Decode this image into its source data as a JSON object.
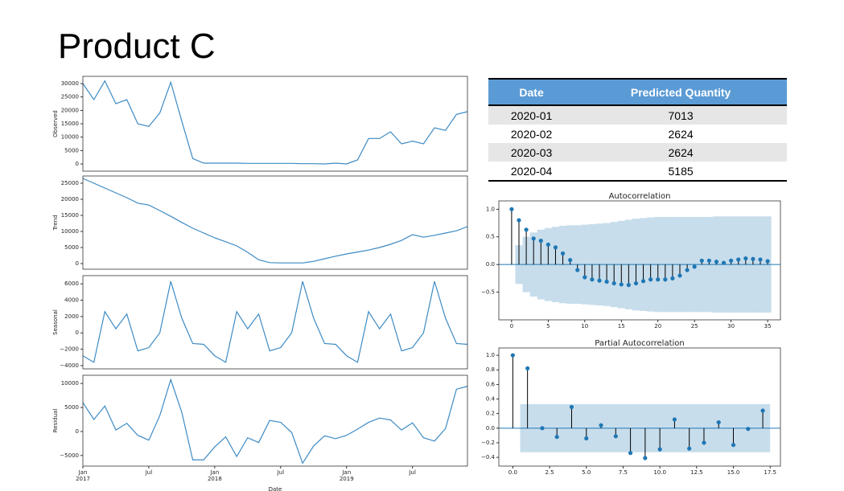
{
  "title": "Product C",
  "table": {
    "columns": [
      "Date",
      "Predicted Quantity"
    ],
    "rows": [
      [
        "2020-01",
        "7013"
      ],
      [
        "2020-02",
        "2624"
      ],
      [
        "2020-03",
        "2624"
      ],
      [
        "2020-04",
        "5185"
      ]
    ]
  },
  "chart_data": [
    {
      "type": "line",
      "ylabel": "Observed",
      "color": "#3d8bc4",
      "x": [
        "2017-01",
        "2017-02",
        "2017-03",
        "2017-04",
        "2017-05",
        "2017-06",
        "2017-07",
        "2017-08",
        "2017-09",
        "2017-10",
        "2017-11",
        "2017-12",
        "2018-01",
        "2018-02",
        "2018-03",
        "2018-04",
        "2018-05",
        "2018-06",
        "2018-07",
        "2018-08",
        "2018-09",
        "2018-10",
        "2018-11",
        "2018-12",
        "2019-01",
        "2019-02",
        "2019-03",
        "2019-04",
        "2019-05",
        "2019-06",
        "2019-07",
        "2019-08",
        "2019-09",
        "2019-10",
        "2019-11",
        "2019-12"
      ],
      "values": [
        30000,
        24000,
        31000,
        22500,
        24000,
        15000,
        14000,
        19000,
        30500,
        16000,
        2000,
        300,
        300,
        300,
        300,
        200,
        200,
        200,
        200,
        200,
        100,
        100,
        0,
        300,
        0,
        1500,
        9500,
        9500,
        12000,
        7500,
        8500,
        7500,
        13500,
        12500,
        18500,
        19500
      ],
      "ylim": [
        -2700,
        32700
      ],
      "yticks": [
        0,
        5000,
        10000,
        15000,
        20000,
        25000,
        30000
      ]
    },
    {
      "type": "line",
      "ylabel": "Trend",
      "color": "#3d8bc4",
      "x": [
        "2017-01",
        "2017-02",
        "2017-03",
        "2017-04",
        "2017-05",
        "2017-06",
        "2017-07",
        "2017-08",
        "2017-09",
        "2017-10",
        "2017-11",
        "2017-12",
        "2018-01",
        "2018-02",
        "2018-03",
        "2018-04",
        "2018-05",
        "2018-06",
        "2018-07",
        "2018-08",
        "2018-09",
        "2018-10",
        "2018-11",
        "2018-12",
        "2019-01",
        "2019-02",
        "2019-03",
        "2019-04",
        "2019-05",
        "2019-06",
        "2019-07",
        "2019-08",
        "2019-09",
        "2019-10",
        "2019-11",
        "2019-12"
      ],
      "values": [
        26500,
        25000,
        23500,
        22000,
        20500,
        18800,
        18200,
        16500,
        14700,
        12800,
        11000,
        9500,
        8000,
        6800,
        5500,
        3500,
        1200,
        300,
        200,
        200,
        200,
        700,
        1500,
        2300,
        3000,
        3600,
        4200,
        5000,
        6000,
        7200,
        9000,
        8200,
        8800,
        9500,
        10200,
        11500
      ],
      "ylim": [
        -1750,
        27250
      ],
      "yticks": [
        0,
        5000,
        10000,
        15000,
        20000,
        25000
      ]
    },
    {
      "type": "line",
      "ylabel": "Seasonal",
      "color": "#3d8bc4",
      "x": [
        "2017-01",
        "2017-02",
        "2017-03",
        "2017-04",
        "2017-05",
        "2017-06",
        "2017-07",
        "2017-08",
        "2017-09",
        "2017-10",
        "2017-11",
        "2017-12",
        "2018-01",
        "2018-02",
        "2018-03",
        "2018-04",
        "2018-05",
        "2018-06",
        "2018-07",
        "2018-08",
        "2018-09",
        "2018-10",
        "2018-11",
        "2018-12",
        "2019-01",
        "2019-02",
        "2019-03",
        "2019-04",
        "2019-05",
        "2019-06",
        "2019-07",
        "2019-08",
        "2019-09",
        "2019-10",
        "2019-11",
        "2019-12"
      ],
      "values": [
        -2800,
        -3600,
        2600,
        500,
        2300,
        -2200,
        -1800,
        0,
        6300,
        1800,
        -1300,
        -1400,
        -2800,
        -3600,
        2600,
        500,
        2300,
        -2200,
        -1800,
        0,
        6300,
        1800,
        -1300,
        -1400,
        -2800,
        -3600,
        2600,
        500,
        2300,
        -2200,
        -1800,
        0,
        6300,
        1800,
        -1300,
        -1400
      ],
      "ylim": [
        -4400,
        7000
      ],
      "yticks": [
        {
          "value": -4000,
          "label": "−4000"
        },
        {
          "value": -2000,
          "label": "−2000"
        },
        0,
        2000,
        4000,
        6000
      ]
    },
    {
      "type": "line",
      "ylabel": "Residual",
      "xlabel": "Date",
      "color": "#3d8bc4",
      "x": [
        "2017-01",
        "2017-02",
        "2017-03",
        "2017-04",
        "2017-05",
        "2017-06",
        "2017-07",
        "2017-08",
        "2017-09",
        "2017-10",
        "2017-11",
        "2017-12",
        "2018-01",
        "2018-02",
        "2018-03",
        "2018-04",
        "2018-05",
        "2018-06",
        "2018-07",
        "2018-08",
        "2018-09",
        "2018-10",
        "2018-11",
        "2018-12",
        "2019-01",
        "2019-02",
        "2019-03",
        "2019-04",
        "2019-05",
        "2019-06",
        "2019-07",
        "2019-08",
        "2019-09",
        "2019-10",
        "2019-11",
        "2019-12"
      ],
      "values": [
        6000,
        2500,
        5300,
        300,
        1700,
        -800,
        -1800,
        3300,
        10800,
        4000,
        -5900,
        -5900,
        -3200,
        -1100,
        -5200,
        -1300,
        -2300,
        2300,
        1900,
        -200,
        -6600,
        -3000,
        -900,
        -1500,
        -800,
        500,
        1900,
        2800,
        2400,
        300,
        1800,
        -1300,
        -2000,
        600,
        8800,
        9400
      ],
      "ylim": [
        -7200,
        11700
      ],
      "yticks": [
        {
          "value": -5000,
          "label": "−5000"
        },
        0,
        5000,
        10000
      ],
      "xticks": [
        {
          "value": "2017-01",
          "label": "Jan\n2017"
        },
        {
          "value": "2017-07",
          "label": "Jul"
        },
        {
          "value": "2018-01",
          "label": "Jan\n2018"
        },
        {
          "value": "2018-07",
          "label": "Jul"
        },
        {
          "value": "2019-01",
          "label": "Jan\n2019"
        },
        {
          "value": "2019-07",
          "label": "Jul"
        }
      ]
    },
    {
      "type": "stem",
      "title": "Autocorrelation",
      "color": "#1f77b4",
      "x": [
        0,
        1,
        2,
        3,
        4,
        5,
        6,
        7,
        8,
        9,
        10,
        11,
        12,
        13,
        14,
        15,
        16,
        17,
        18,
        19,
        20,
        21,
        22,
        23,
        24,
        25,
        26,
        27,
        28,
        29,
        30,
        31,
        32,
        33,
        34,
        35
      ],
      "values": [
        1.0,
        0.8,
        0.63,
        0.47,
        0.43,
        0.36,
        0.31,
        0.2,
        0.08,
        -0.1,
        -0.23,
        -0.27,
        -0.29,
        -0.31,
        -0.34,
        -0.36,
        -0.37,
        -0.34,
        -0.3,
        -0.27,
        -0.27,
        -0.27,
        -0.25,
        -0.2,
        -0.1,
        -0.04,
        0.07,
        0.07,
        0.05,
        0.03,
        0.07,
        0.09,
        0.11,
        0.1,
        0.09,
        0.06
      ],
      "confint": [
        0.35,
        0.5,
        0.58,
        0.63,
        0.66,
        0.68,
        0.7,
        0.71,
        0.71,
        0.72,
        0.73,
        0.74,
        0.75,
        0.77,
        0.79,
        0.81,
        0.83,
        0.84,
        0.85,
        0.86,
        0.86,
        0.86,
        0.86,
        0.86,
        0.86,
        0.86,
        0.86,
        0.87,
        0.87,
        0.87,
        0.87,
        0.87,
        0.87,
        0.87,
        0.87
      ],
      "xlim": [
        -1.75,
        36.75
      ],
      "ylim": [
        -1.0,
        1.15
      ],
      "xticks": [
        0,
        5,
        10,
        15,
        20,
        25,
        30,
        35
      ],
      "yticks": [
        {
          "value": -0.5,
          "label": "−0.5"
        },
        {
          "value": 0,
          "label": "0.0"
        },
        0.5,
        {
          "value": 1,
          "label": "1.0"
        }
      ]
    },
    {
      "type": "stem",
      "title": "Partial Autocorrelation",
      "color": "#1f77b4",
      "x": [
        0,
        1,
        2,
        3,
        4,
        5,
        6,
        7,
        8,
        9,
        10,
        11,
        12,
        13,
        14,
        15,
        16,
        17
      ],
      "values": [
        1.0,
        0.82,
        0.0,
        -0.12,
        0.29,
        -0.14,
        0.04,
        -0.11,
        -0.34,
        -0.41,
        -0.29,
        0.12,
        -0.28,
        -0.2,
        0.08,
        -0.23,
        -0.01,
        0.24
      ],
      "confint": 0.33,
      "xlim": [
        -0.95,
        18.2
      ],
      "ylim": [
        -0.52,
        1.1
      ],
      "xticks": [
        {
          "value": 0,
          "label": "0.0"
        },
        2.5,
        {
          "value": 5,
          "label": "5.0"
        },
        7.5,
        {
          "value": 10,
          "label": "10.0"
        },
        12.5,
        {
          "value": 15,
          "label": "15.0"
        },
        17.5
      ],
      "yticks": [
        {
          "value": -0.4,
          "label": "−0.4"
        },
        {
          "value": -0.2,
          "label": "−0.2"
        },
        {
          "value": 0,
          "label": "0.0"
        },
        0.2,
        0.4,
        0.6,
        0.8,
        {
          "value": 1,
          "label": "1.0"
        }
      ]
    }
  ]
}
